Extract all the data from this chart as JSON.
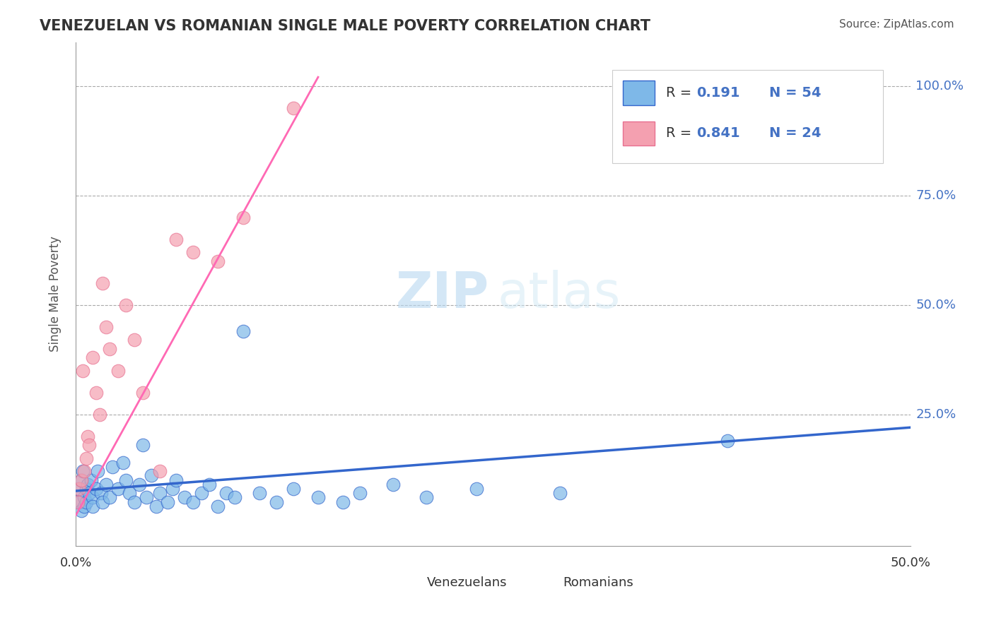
{
  "title": "VENEZUELAN VS ROMANIAN SINGLE MALE POVERTY CORRELATION CHART",
  "source": "Source: ZipAtlas.com",
  "ylabel": "Single Male Poverty",
  "xlim": [
    0.0,
    0.5
  ],
  "ylim": [
    -0.05,
    1.1
  ],
  "r_venezuelan": 0.191,
  "n_venezuelan": 54,
  "r_romanian": 0.841,
  "n_romanian": 24,
  "color_venezuelan": "#7EB8E8",
  "color_romanian": "#F4A0B0",
  "line_color_venezuelan": "#3366CC",
  "line_color_romanian": "#FF69B4",
  "watermark_zip": "ZIP",
  "watermark_atlas": "atlas",
  "venezuelan_x": [
    0.001,
    0.002,
    0.003,
    0.003,
    0.004,
    0.005,
    0.005,
    0.006,
    0.006,
    0.007,
    0.008,
    0.009,
    0.01,
    0.01,
    0.012,
    0.013,
    0.015,
    0.016,
    0.018,
    0.02,
    0.022,
    0.025,
    0.028,
    0.03,
    0.032,
    0.035,
    0.038,
    0.04,
    0.042,
    0.045,
    0.048,
    0.05,
    0.055,
    0.058,
    0.06,
    0.065,
    0.07,
    0.075,
    0.08,
    0.085,
    0.09,
    0.095,
    0.1,
    0.11,
    0.12,
    0.13,
    0.145,
    0.16,
    0.17,
    0.19,
    0.21,
    0.24,
    0.29,
    0.39
  ],
  "venezuelan_y": [
    0.08,
    0.05,
    0.1,
    0.03,
    0.12,
    0.06,
    0.04,
    0.08,
    0.05,
    0.09,
    0.07,
    0.1,
    0.06,
    0.04,
    0.08,
    0.12,
    0.07,
    0.05,
    0.09,
    0.06,
    0.13,
    0.08,
    0.14,
    0.1,
    0.07,
    0.05,
    0.09,
    0.18,
    0.06,
    0.11,
    0.04,
    0.07,
    0.05,
    0.08,
    0.1,
    0.06,
    0.05,
    0.07,
    0.09,
    0.04,
    0.07,
    0.06,
    0.44,
    0.07,
    0.05,
    0.08,
    0.06,
    0.05,
    0.07,
    0.09,
    0.06,
    0.08,
    0.07,
    0.19
  ],
  "romanian_x": [
    0.001,
    0.002,
    0.003,
    0.004,
    0.005,
    0.006,
    0.007,
    0.008,
    0.01,
    0.012,
    0.014,
    0.016,
    0.018,
    0.02,
    0.025,
    0.03,
    0.035,
    0.04,
    0.05,
    0.06,
    0.07,
    0.085,
    0.1,
    0.13
  ],
  "romanian_y": [
    0.05,
    0.08,
    0.1,
    0.35,
    0.12,
    0.15,
    0.2,
    0.18,
    0.38,
    0.3,
    0.25,
    0.55,
    0.45,
    0.4,
    0.35,
    0.5,
    0.42,
    0.3,
    0.12,
    0.65,
    0.62,
    0.6,
    0.7,
    0.95
  ]
}
